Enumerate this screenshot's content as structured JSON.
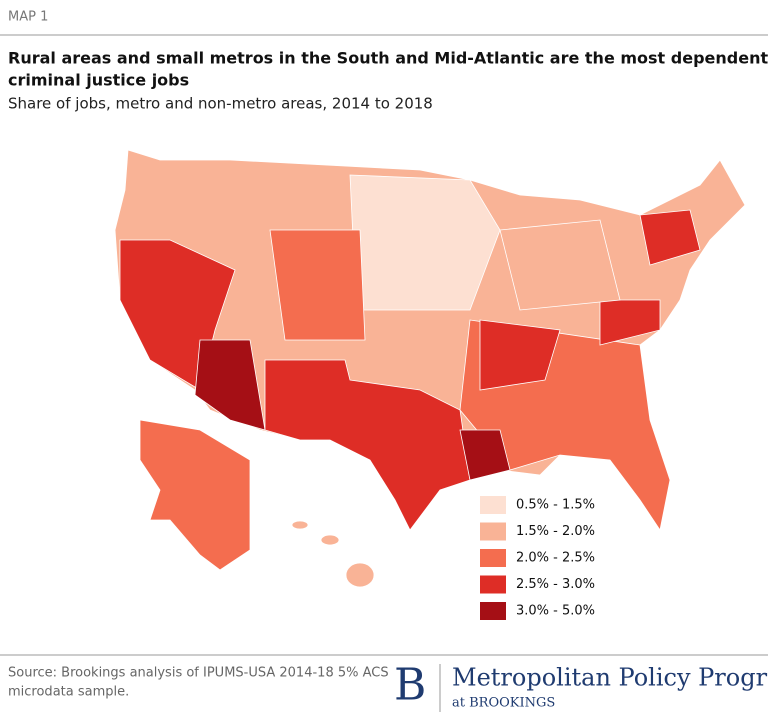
{
  "header": {
    "label": "MAP 1",
    "title_lines": [
      "Rural areas and small metros in the South and Mid-Atlantic are the most dependent on",
      "criminal justice jobs"
    ],
    "subtitle": "Share of jobs, metro and non-metro areas, 2014 to 2018"
  },
  "legend": [
    {
      "label": "0.5% - 1.5%",
      "color": "#fde0d2"
    },
    {
      "label": "1.5% - 2.0%",
      "color": "#f9b396"
    },
    {
      "label": "2.0% - 2.5%",
      "color": "#f46d4f"
    },
    {
      "label": "2.5% - 3.0%",
      "color": "#de2d26"
    },
    {
      "label": "3.0% - 5.0%",
      "color": "#a50f15"
    }
  ],
  "footer": {
    "source_lines": [
      "Source: Brookings analysis of IPUMS-USA 2014-18 5% ACS",
      "microdata sample."
    ],
    "logo_letter": "B",
    "program": "Metropolitan Policy Program",
    "affiliation": "at BROOKINGS"
  }
}
